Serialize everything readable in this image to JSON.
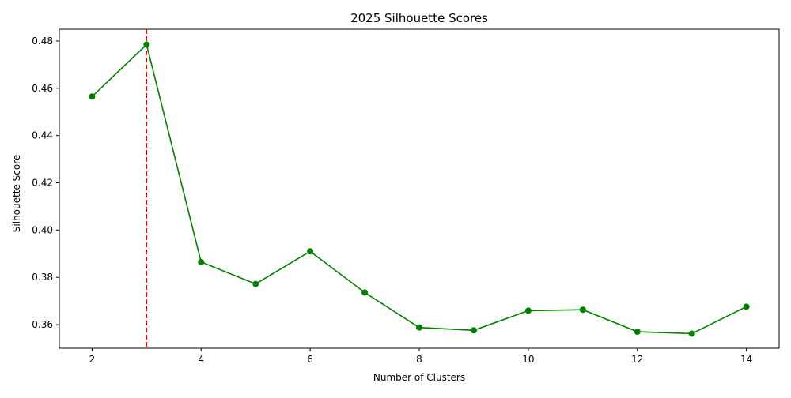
{
  "chart_data": {
    "type": "line",
    "title": "2025 Silhouette Scores",
    "xlabel": "Number of Clusters",
    "ylabel": "Silhouette Score",
    "x": [
      2,
      3,
      4,
      5,
      6,
      7,
      8,
      9,
      10,
      11,
      12,
      13,
      14
    ],
    "series": [
      {
        "values": [
          0.4565,
          0.4785,
          0.3865,
          0.3772,
          0.391,
          0.3736,
          0.3588,
          0.3576,
          0.3659,
          0.3663,
          0.357,
          0.3562,
          0.3676
        ],
        "color": "#008000",
        "marker": "circle"
      }
    ],
    "xlim": [
      1.4,
      14.6
    ],
    "ylim": [
      0.35,
      0.485
    ],
    "xticks": [
      2,
      4,
      6,
      8,
      10,
      12,
      14
    ],
    "xtick_labels": [
      "2",
      "4",
      "6",
      "8",
      "10",
      "12",
      "14"
    ],
    "yticks": [
      0.36,
      0.38,
      0.4,
      0.42,
      0.44,
      0.46,
      0.48
    ],
    "ytick_labels": [
      "0.36",
      "0.38",
      "0.40",
      "0.42",
      "0.44",
      "0.46",
      "0.48"
    ],
    "vline": {
      "x": 3,
      "color": "#ff0000",
      "style": "dashed"
    },
    "grid": false,
    "legend": "none"
  }
}
